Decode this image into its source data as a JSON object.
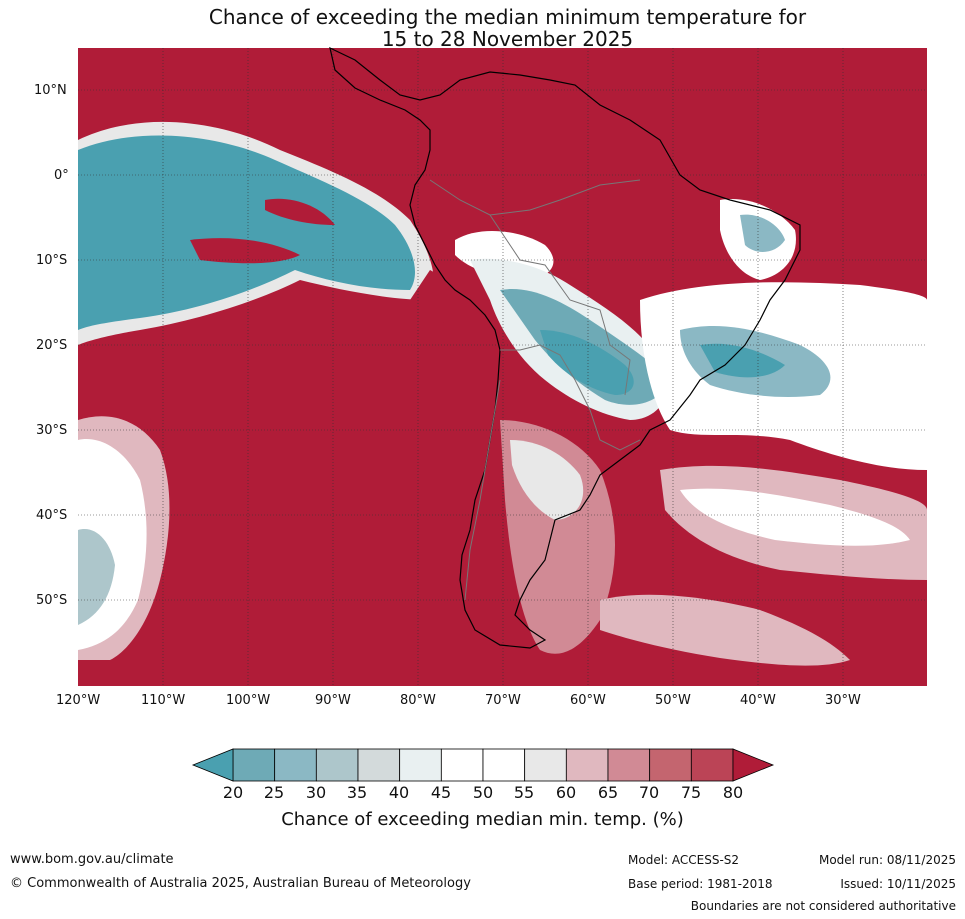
{
  "title": {
    "line1": "Chance of exceeding the median minimum temperature for",
    "line2": "15 to 28 November 2025"
  },
  "axes": {
    "lat_labels": [
      "10°N",
      "0°",
      "10°S",
      "20°S",
      "30°S",
      "40°S",
      "50°S"
    ],
    "lon_labels": [
      "120°W",
      "110°W",
      "100°W",
      "90°W",
      "80°W",
      "70°W",
      "60°W",
      "50°W",
      "40°W",
      "30°W"
    ],
    "lon_range": [
      -120,
      -20
    ],
    "lat_range": [
      -60,
      15
    ]
  },
  "colorbar": {
    "title": "Chance of exceeding median min. temp. (%)",
    "ticks": [
      "20",
      "25",
      "30",
      "35",
      "40",
      "45",
      "50",
      "55",
      "60",
      "65",
      "70",
      "75",
      "80"
    ],
    "colors": [
      "#4aa0b0",
      "#6eaab6",
      "#8bb8c4",
      "#adc6cb",
      "#d3dadb",
      "#e9f0f1",
      "#ffffff",
      "#ffffff",
      "#e8e8e8",
      "#e0b8bf",
      "#d18a95",
      "#c4656f",
      "#bb4456",
      "#b01c38"
    ]
  },
  "footer": {
    "website": "www.bom.gov.au/climate",
    "copyright": "© Commonwealth of Australia 2025, Australian Bureau of Meteorology",
    "model": "Model: ACCESS-S2",
    "base_period": "Base period: 1981-2018",
    "model_run": "Model run: 08/11/2025",
    "issued": "Issued: 10/11/2025",
    "disclaimer": "Boundaries are not considered authoritative"
  }
}
